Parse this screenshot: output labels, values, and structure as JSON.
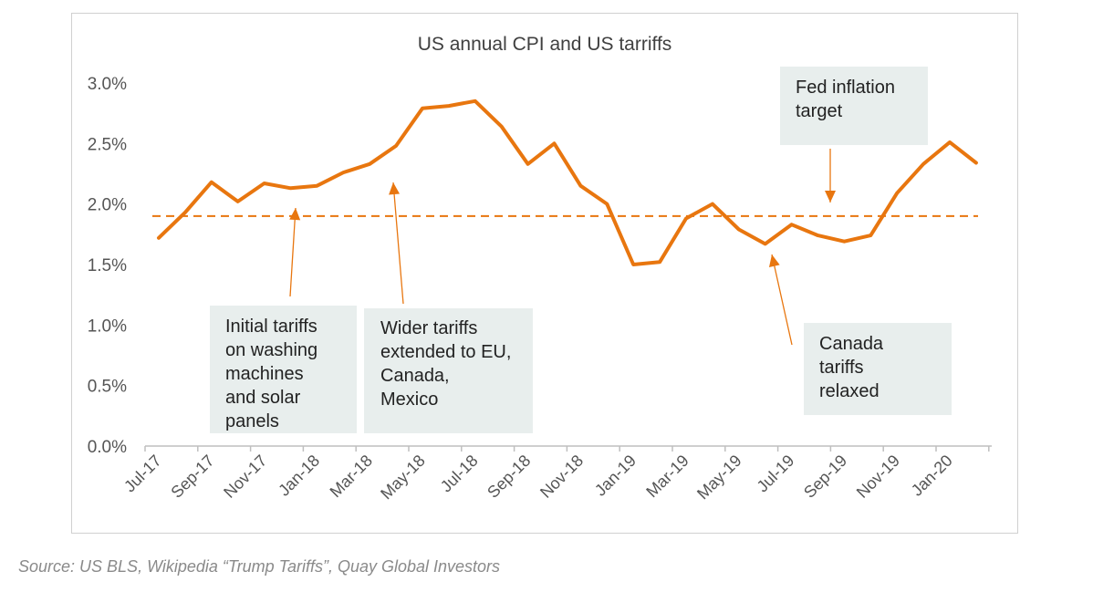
{
  "chart_data": {
    "type": "line",
    "title": "US annual CPI and US tarriffs",
    "x": [
      "Jul-17",
      "Aug-17",
      "Sep-17",
      "Oct-17",
      "Nov-17",
      "Dec-17",
      "Jan-18",
      "Feb-18",
      "Mar-18",
      "Apr-18",
      "May-18",
      "Jun-18",
      "Jul-18",
      "Aug-18",
      "Sep-18",
      "Oct-18",
      "Nov-18",
      "Dec-18",
      "Jan-19",
      "Feb-19",
      "Mar-19",
      "Apr-19",
      "May-19",
      "Jun-19",
      "Jul-19",
      "Aug-19",
      "Sep-19",
      "Oct-19",
      "Nov-19",
      "Dec-19",
      "Jan-20",
      "Feb-20"
    ],
    "x_tick_labels": [
      "Jul-17",
      "Sep-17",
      "Nov-17",
      "Jan-18",
      "Mar-18",
      "May-18",
      "Jul-18",
      "Sep-18",
      "Nov-18",
      "Jan-19",
      "Mar-19",
      "May-19",
      "Jul-19",
      "Sep-19",
      "Nov-19",
      "Jan-20"
    ],
    "series": [
      {
        "values": [
          1.72,
          1.93,
          2.18,
          2.02,
          2.17,
          2.13,
          2.15,
          2.26,
          2.33,
          2.48,
          2.79,
          2.81,
          2.85,
          2.64,
          2.33,
          2.5,
          2.15,
          2.0,
          1.5,
          1.52,
          1.88,
          2.0,
          1.79,
          1.67,
          1.83,
          1.74,
          1.69,
          1.74,
          2.09,
          2.33,
          2.51,
          2.34
        ],
        "color": "#e8760f"
      }
    ],
    "reference_line": {
      "value": 1.9,
      "color": "#e8760f",
      "style": "dashed"
    },
    "y_ticks": [
      "0.0%",
      "0.5%",
      "1.0%",
      "1.5%",
      "2.0%",
      "2.5%",
      "3.0%"
    ],
    "ylim": [
      0,
      3.0
    ],
    "grid": false,
    "annotations": [
      {
        "text": [
          "Initial tariffs",
          "on washing",
          "machines",
          "and solar",
          "panels"
        ],
        "points_to": "Jan-18"
      },
      {
        "text": [
          "Wider tariffs",
          "extended to EU,",
          "Canada,",
          "Mexico"
        ],
        "points_to": "Apr-18"
      },
      {
        "text": [
          "Fed inflation",
          "target"
        ],
        "points_to": "Sep-19"
      },
      {
        "text": [
          "Canada",
          "tariffs",
          "relaxed"
        ],
        "points_to": "Jun-19"
      }
    ]
  },
  "source": "Source: US BLS, Wikipedia “Trump Tariffs”, Quay Global Investors"
}
